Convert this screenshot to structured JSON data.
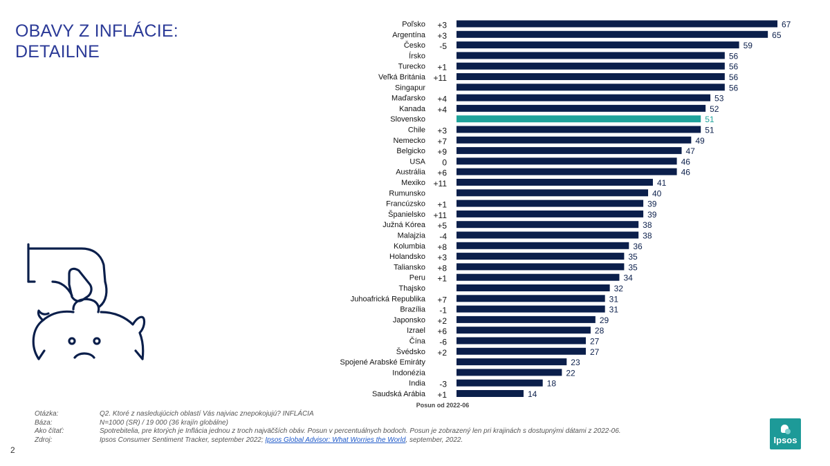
{
  "page": {
    "title_line1": "OBAVY Z INFLÁCIE:",
    "title_line2": "DETAILNE",
    "page_number": "2",
    "logo_text": "Ipsos"
  },
  "colors": {
    "bar": "#0b1f4b",
    "highlight": "#1fa39b",
    "title": "#2b3a97",
    "icon": "#0b1f4b"
  },
  "footer": {
    "rows": [
      {
        "key": "Otázka:",
        "value": "Q2. Ktoré z nasledujúcich oblastí Vás najviac znepokojujú? INFLÁCIA"
      },
      {
        "key": "Báza:",
        "value": "N=1000 (SR) / 19 000 (36 krajín globálne)"
      },
      {
        "key": "Ako čítať:",
        "value": "Spotrebitelia, pre ktorých je Inflácia jednou z troch najväčších obáv. Posun v percentuálnych bodoch. Posun je zobrazený len pri krajinách s dostupnými dátami z 2022-06."
      }
    ],
    "source_key": "Zdroj:",
    "source_prefix": "Ipsos Consumer Sentiment Tracker, september 2022; ",
    "source_link": "Ipsos Global Advisor: What Worries the World",
    "source_suffix": ", september, 2022."
  },
  "chart_data": {
    "type": "bar",
    "orientation": "horizontal",
    "title": "",
    "xlabel": "",
    "ylabel": "",
    "xlim": [
      0,
      67
    ],
    "change_column_label": "Posun od 2022-06",
    "highlight": "Slovensko",
    "categories": [
      "Poľsko",
      "Argentína",
      "Česko",
      "Írsko",
      "Turecko",
      "Veľká Británia",
      "Singapur",
      "Maďarsko",
      "Kanada",
      "Slovensko",
      "Chile",
      "Nemecko",
      "Belgicko",
      "USA",
      "Austrália",
      "Mexiko",
      "Rumunsko",
      "Francúzsko",
      "Španielsko",
      "Južná Kórea",
      "Malajzia",
      "Kolumbia",
      "Holandsko",
      "Taliansko",
      "Peru",
      "Thajsko",
      "Juhoafrická Republika",
      "Brazília",
      "Japonsko",
      "Izrael",
      "Čína",
      "Švédsko",
      "Spojené Arabské Emiráty",
      "Indonézia",
      "India",
      "Saudská Arábia"
    ],
    "values": [
      67,
      65,
      59,
      56,
      56,
      56,
      56,
      53,
      52,
      51,
      51,
      49,
      47,
      46,
      46,
      41,
      40,
      39,
      39,
      38,
      38,
      36,
      35,
      35,
      34,
      32,
      31,
      31,
      29,
      28,
      27,
      27,
      23,
      22,
      18,
      14
    ],
    "changes": [
      "+3",
      "+3",
      "-5",
      "",
      "+1",
      "+11",
      "",
      "+4",
      "+4",
      "",
      "+3",
      "+7",
      "+9",
      "0",
      "+6",
      "+11",
      "",
      "+1",
      "+11",
      "+5",
      "-4",
      "+8",
      "+3",
      "+8",
      "+1",
      "",
      "+7",
      "-1",
      "+2",
      "+6",
      "-6",
      "+2",
      "",
      "",
      "-3",
      "+1"
    ]
  }
}
